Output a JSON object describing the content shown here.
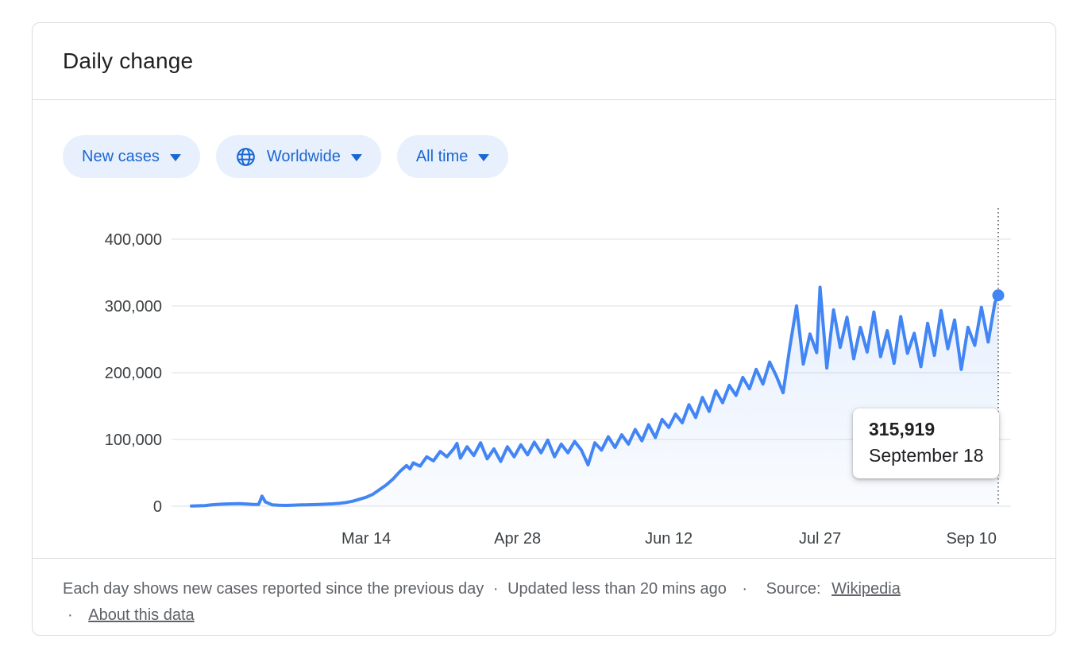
{
  "card": {
    "title": "Daily change",
    "filters": [
      {
        "label": "New cases",
        "icon": null,
        "chevron": "chevron-down-icon"
      },
      {
        "label": "Worldwide",
        "icon": "globe-icon",
        "chevron": "chevron-down-icon"
      },
      {
        "label": "All time",
        "icon": null,
        "chevron": "chevron-down-icon"
      }
    ],
    "tooltip": {
      "value": "315,919",
      "date": "September 18"
    },
    "footer": {
      "description": "Each day shows new cases reported since the previous day",
      "separator": "·",
      "updated": "Updated less than 20 mins ago",
      "source_label": "Source:",
      "source_link": "Wikipedia",
      "about_link": "About this data"
    }
  },
  "colors": {
    "line": "#4285f4",
    "chip_background": "#e8f0fe",
    "chip_text": "#1967d2",
    "axis_text": "#3c4043",
    "gridline": "#e8eaed",
    "footer_text": "#5f6368"
  },
  "chart_data": {
    "type": "area",
    "title": "Daily change",
    "xlabel": "",
    "ylabel": "",
    "x_unit": "days since Jan 22, 2020",
    "x_range": [
      0,
      240
    ],
    "ylim": [
      0,
      400000
    ],
    "grid": true,
    "legend": false,
    "y_ticks": [
      {
        "value": 0,
        "label": "0"
      },
      {
        "value": 100000,
        "label": "100,000"
      },
      {
        "value": 200000,
        "label": "200,000"
      },
      {
        "value": 300000,
        "label": "300,000"
      },
      {
        "value": 400000,
        "label": "400,000"
      }
    ],
    "x_ticks": [
      {
        "day": 52,
        "label": "Mar 14"
      },
      {
        "day": 97,
        "label": "Apr 28"
      },
      {
        "day": 142,
        "label": "Jun 12"
      },
      {
        "day": 187,
        "label": "Jul 27"
      },
      {
        "day": 232,
        "label": "Sep 10"
      }
    ],
    "points": [
      [
        0,
        400
      ],
      [
        2,
        600
      ],
      [
        4,
        900
      ],
      [
        6,
        2000
      ],
      [
        8,
        2800
      ],
      [
        10,
        3200
      ],
      [
        12,
        3600
      ],
      [
        14,
        3900
      ],
      [
        16,
        3500
      ],
      [
        18,
        2900
      ],
      [
        20,
        2600
      ],
      [
        21,
        15100
      ],
      [
        22,
        6500
      ],
      [
        24,
        2200
      ],
      [
        26,
        1600
      ],
      [
        28,
        1200
      ],
      [
        30,
        1500
      ],
      [
        32,
        1900
      ],
      [
        34,
        2100
      ],
      [
        36,
        2400
      ],
      [
        38,
        2700
      ],
      [
        40,
        3100
      ],
      [
        42,
        3600
      ],
      [
        44,
        4300
      ],
      [
        46,
        5600
      ],
      [
        48,
        7500
      ],
      [
        50,
        10500
      ],
      [
        52,
        13500
      ],
      [
        54,
        18000
      ],
      [
        56,
        25000
      ],
      [
        58,
        32000
      ],
      [
        60,
        41000
      ],
      [
        62,
        52000
      ],
      [
        64,
        61000
      ],
      [
        65,
        56000
      ],
      [
        66,
        65000
      ],
      [
        68,
        60000
      ],
      [
        70,
        74000
      ],
      [
        72,
        68000
      ],
      [
        74,
        82000
      ],
      [
        76,
        74000
      ],
      [
        78,
        86000
      ],
      [
        79,
        94000
      ],
      [
        80,
        72000
      ],
      [
        82,
        89000
      ],
      [
        84,
        76000
      ],
      [
        86,
        95000
      ],
      [
        88,
        71000
      ],
      [
        90,
        86000
      ],
      [
        92,
        67000
      ],
      [
        94,
        89000
      ],
      [
        96,
        74000
      ],
      [
        98,
        92000
      ],
      [
        100,
        77000
      ],
      [
        102,
        96000
      ],
      [
        104,
        80000
      ],
      [
        106,
        99000
      ],
      [
        108,
        74000
      ],
      [
        110,
        93000
      ],
      [
        112,
        80000
      ],
      [
        114,
        97000
      ],
      [
        116,
        84000
      ],
      [
        118,
        62000
      ],
      [
        120,
        95000
      ],
      [
        122,
        84000
      ],
      [
        124,
        104000
      ],
      [
        126,
        88000
      ],
      [
        128,
        107000
      ],
      [
        130,
        93000
      ],
      [
        132,
        115000
      ],
      [
        134,
        98000
      ],
      [
        136,
        122000
      ],
      [
        138,
        103000
      ],
      [
        140,
        130000
      ],
      [
        142,
        118000
      ],
      [
        144,
        138000
      ],
      [
        146,
        125000
      ],
      [
        148,
        152000
      ],
      [
        150,
        133000
      ],
      [
        152,
        163000
      ],
      [
        154,
        142000
      ],
      [
        156,
        173000
      ],
      [
        158,
        155000
      ],
      [
        160,
        181000
      ],
      [
        162,
        166000
      ],
      [
        164,
        193000
      ],
      [
        166,
        176000
      ],
      [
        168,
        205000
      ],
      [
        170,
        183000
      ],
      [
        172,
        216000
      ],
      [
        174,
        195000
      ],
      [
        176,
        170000
      ],
      [
        178,
        238000
      ],
      [
        180,
        300000
      ],
      [
        182,
        213000
      ],
      [
        184,
        258000
      ],
      [
        186,
        230000
      ],
      [
        187,
        328000
      ],
      [
        189,
        207000
      ],
      [
        191,
        294000
      ],
      [
        193,
        238000
      ],
      [
        195,
        283000
      ],
      [
        197,
        221000
      ],
      [
        199,
        268000
      ],
      [
        201,
        231000
      ],
      [
        203,
        291000
      ],
      [
        205,
        224000
      ],
      [
        207,
        263000
      ],
      [
        209,
        214000
      ],
      [
        211,
        284000
      ],
      [
        213,
        229000
      ],
      [
        215,
        259000
      ],
      [
        217,
        209000
      ],
      [
        219,
        274000
      ],
      [
        221,
        226000
      ],
      [
        223,
        293000
      ],
      [
        225,
        236000
      ],
      [
        227,
        279000
      ],
      [
        229,
        205000
      ],
      [
        231,
        268000
      ],
      [
        233,
        241000
      ],
      [
        235,
        298000
      ],
      [
        237,
        246000
      ],
      [
        239,
        305000
      ],
      [
        240,
        315919
      ]
    ],
    "highlight": {
      "day": 240,
      "value": 315919,
      "value_label": "315,919",
      "date_label": "September 18"
    }
  }
}
